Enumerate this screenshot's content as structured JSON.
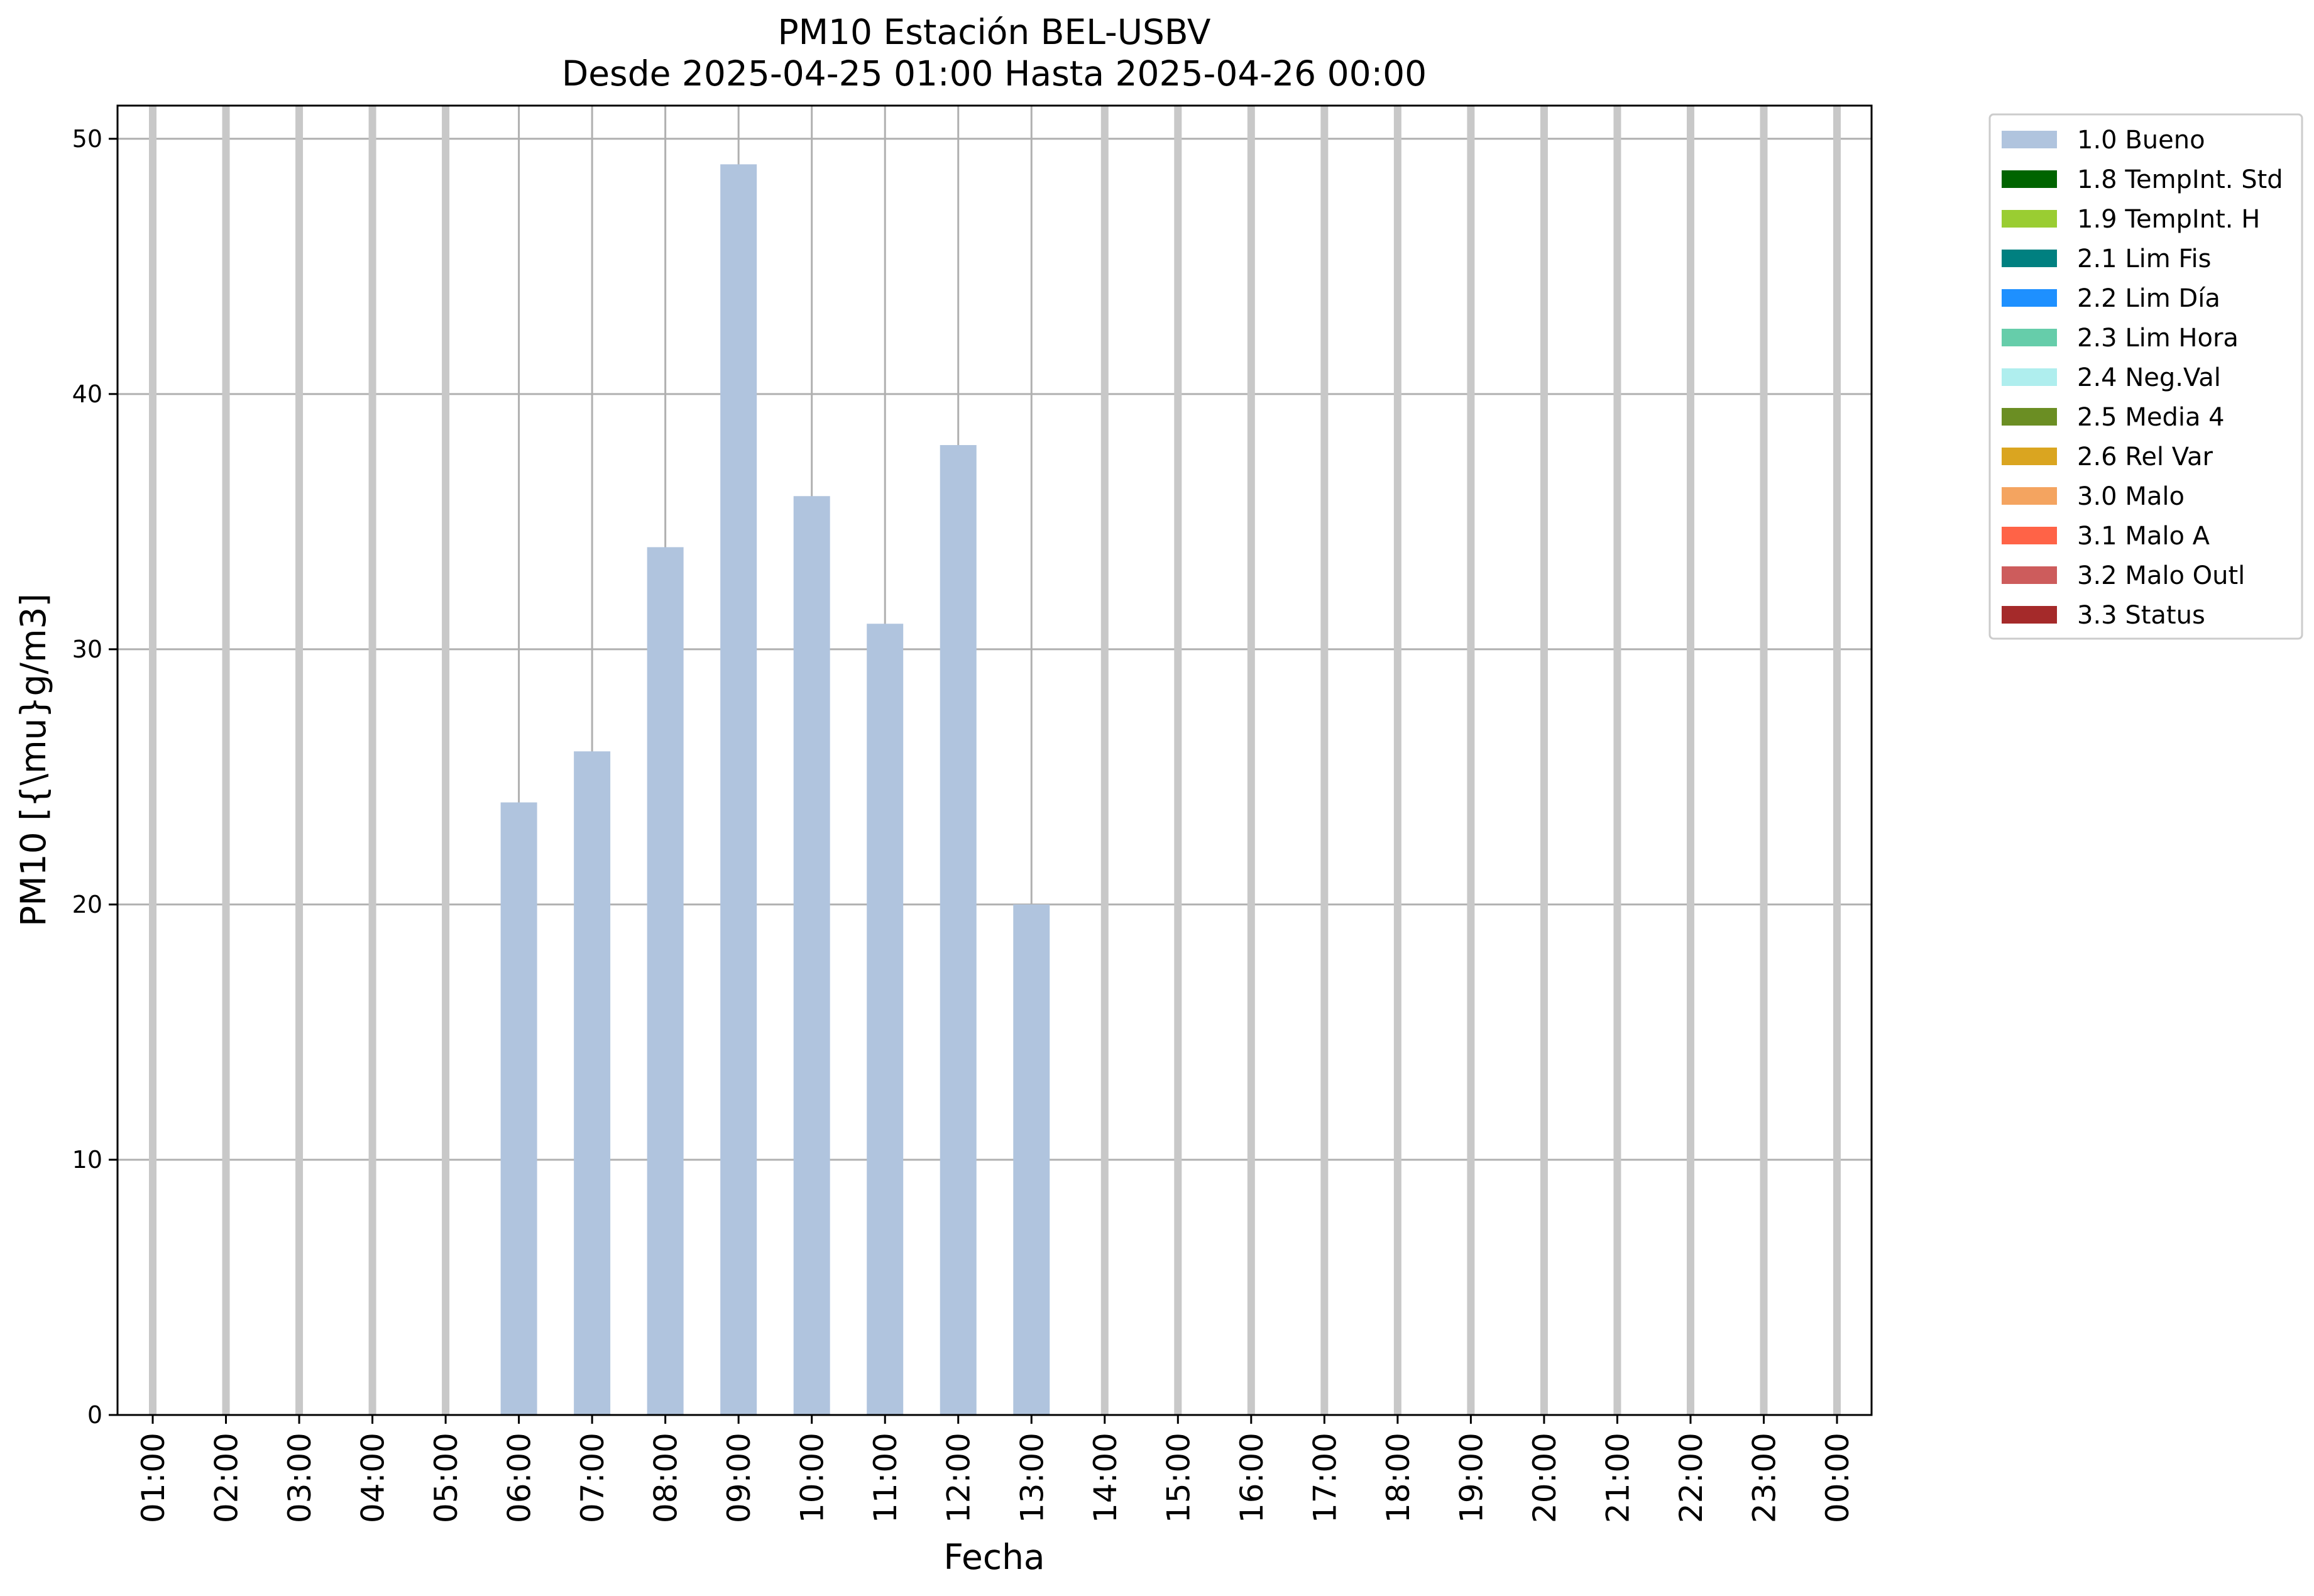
{
  "chart_data": {
    "type": "bar",
    "title": "PM10 Estación BEL-USBV",
    "subtitle": "Desde 2025-04-25 01:00 Hasta 2025-04-26 00:00",
    "xlabel": "Fecha",
    "ylabel": "PM10 [{\\mu}g/m3]",
    "ylim": [
      0,
      51.3
    ],
    "yticks": [
      0,
      10,
      20,
      30,
      40,
      50
    ],
    "grid": true,
    "legend_position": "outside-right",
    "categories": [
      "01:00",
      "02:00",
      "03:00",
      "04:00",
      "05:00",
      "06:00",
      "07:00",
      "08:00",
      "09:00",
      "10:00",
      "11:00",
      "12:00",
      "13:00",
      "14:00",
      "15:00",
      "16:00",
      "17:00",
      "18:00",
      "19:00",
      "20:00",
      "21:00",
      "22:00",
      "23:00",
      "00:00"
    ],
    "series": [
      {
        "name": "1.0 Bueno",
        "color": "#b0c4de",
        "values": [
          null,
          null,
          null,
          null,
          null,
          24,
          26,
          34,
          49,
          36,
          31,
          38,
          20,
          null,
          null,
          null,
          null,
          null,
          null,
          null,
          null,
          null,
          null,
          null
        ]
      }
    ],
    "legend": [
      {
        "label": "1.0 Bueno",
        "color": "#b0c4de"
      },
      {
        "label": "1.8 TempInt. Std",
        "color": "#006400"
      },
      {
        "label": "1.9 TempInt. H",
        "color": "#9acd32"
      },
      {
        "label": "2.1 Lim Fis",
        "color": "#008080"
      },
      {
        "label": "2.2 Lim Día",
        "color": "#1e90ff"
      },
      {
        "label": "2.3 Lim Hora",
        "color": "#66cdaa"
      },
      {
        "label": "2.4 Neg.Val",
        "color": "#afeeee"
      },
      {
        "label": "2.5 Media 4",
        "color": "#6b8e23"
      },
      {
        "label": "2.6 Rel Var",
        "color": "#daa520"
      },
      {
        "label": "3.0 Malo",
        "color": "#f4a460"
      },
      {
        "label": "3.1 Malo A",
        "color": "#ff6347"
      },
      {
        "label": "3.2 Malo Outl",
        "color": "#cd5c5c"
      },
      {
        "label": "3.3 Status",
        "color": "#a52a2a"
      }
    ],
    "missing_marker_color": "#c8c8c8"
  }
}
